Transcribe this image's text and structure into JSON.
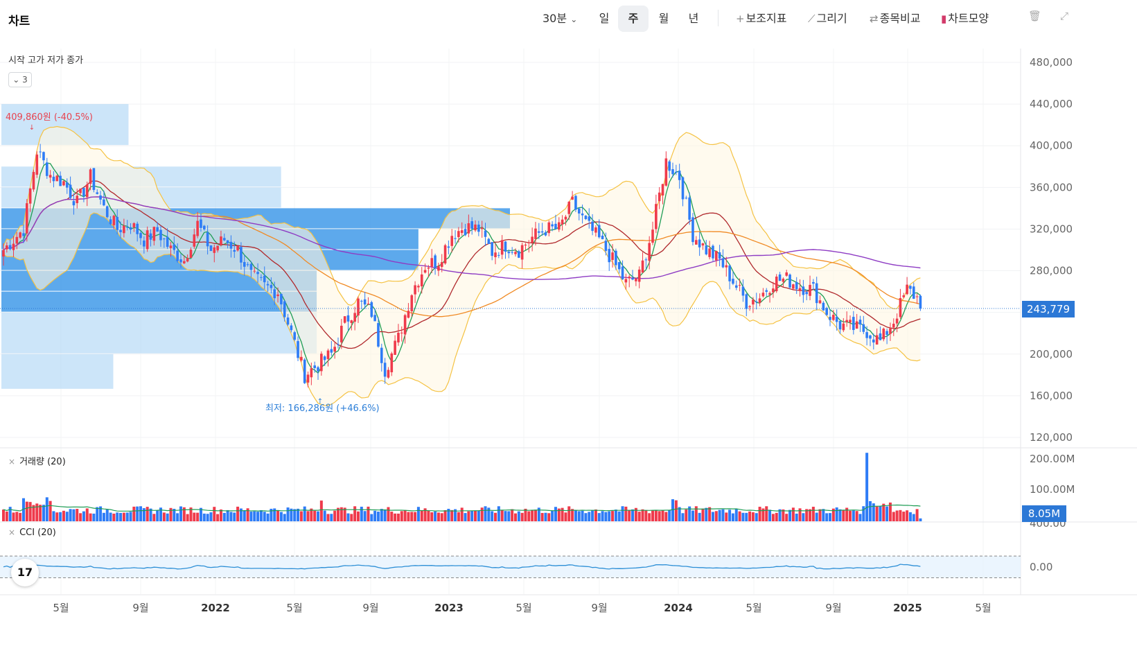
{
  "toolbar": {
    "title": "차트",
    "interval": "30분",
    "periods": [
      "일",
      "주",
      "월",
      "년"
    ],
    "active_period": "주",
    "tools": [
      {
        "icon": "plus-icon",
        "glyph": "+",
        "label": "보조지표"
      },
      {
        "icon": "pencil-icon",
        "glyph": "⟋",
        "label": "그리기"
      },
      {
        "icon": "compare-icon",
        "glyph": "⇄",
        "label": "종목비교"
      },
      {
        "icon": "chart-style-icon",
        "glyph": "▮",
        "label": "차트모양"
      }
    ],
    "trash_glyph": "🗑",
    "expand_glyph": "⤢"
  },
  "legend": {
    "ohlc": "시작 고가 저가 종가",
    "collapsed_count": "3"
  },
  "annotations": {
    "high": "409,860원 (-40.5%)",
    "low": "최저: 166,286원 (+46.6%)"
  },
  "current": {
    "price": "243,779",
    "volume": "8.05M"
  },
  "panes": {
    "volume_label": "거래량 (20)",
    "cci_label": "CCI (20)",
    "close_glyph": "×"
  },
  "colors": {
    "up": "#ef3a4b",
    "down": "#2e7cf6",
    "ma_short": "#1f9d55",
    "ma_mid": "#b0282c",
    "ma_long": "#f08a24",
    "ma_longest": "#8e3cc4",
    "bollinger": "#f5c242",
    "volume_profile": "#1e88e5",
    "cci": "#2d8fd6"
  },
  "chart_data": {
    "type": "candlestick",
    "y_ticks": [
      "480,000",
      "440,000",
      "400,000",
      "360,000",
      "320,000",
      "280,000",
      "240,000",
      "200,000",
      "160,000",
      "120,000"
    ],
    "y_range": [
      120000,
      480000
    ],
    "x_labels": [
      {
        "label": "5월",
        "year": false
      },
      {
        "label": "9월",
        "year": false
      },
      {
        "label": "2022",
        "year": true
      },
      {
        "label": "5월",
        "year": false
      },
      {
        "label": "9월",
        "year": false
      },
      {
        "label": "2023",
        "year": true
      },
      {
        "label": "5월",
        "year": false
      },
      {
        "label": "9월",
        "year": false
      },
      {
        "label": "2024",
        "year": true
      },
      {
        "label": "5월",
        "year": false
      },
      {
        "label": "9월",
        "year": false
      },
      {
        "label": "2025",
        "year": true
      },
      {
        "label": "5월",
        "year": false
      }
    ],
    "volume_ticks": [
      "200.00M",
      "100.00M"
    ],
    "cci_ticks": [
      "400.00",
      "0.00"
    ],
    "cci_range": [
      -250,
      400
    ],
    "close_anchors": [
      [
        0,
        300000
      ],
      [
        6,
        320000
      ],
      [
        10,
        395000
      ],
      [
        14,
        372000
      ],
      [
        18,
        365000
      ],
      [
        22,
        345000
      ],
      [
        26,
        370000
      ],
      [
        30,
        340000
      ],
      [
        34,
        320000
      ],
      [
        38,
        325000
      ],
      [
        42,
        310000
      ],
      [
        46,
        318000
      ],
      [
        50,
        300000
      ],
      [
        54,
        290000
      ],
      [
        58,
        325000
      ],
      [
        62,
        300000
      ],
      [
        66,
        310000
      ],
      [
        70,
        300000
      ],
      [
        74,
        275000
      ],
      [
        78,
        265000
      ],
      [
        82,
        260000
      ],
      [
        86,
        220000
      ],
      [
        90,
        180000
      ],
      [
        94,
        190000
      ],
      [
        98,
        200000
      ],
      [
        102,
        230000
      ],
      [
        106,
        250000
      ],
      [
        110,
        240000
      ],
      [
        114,
        185000
      ],
      [
        118,
        215000
      ],
      [
        122,
        260000
      ],
      [
        126,
        285000
      ],
      [
        130,
        290000
      ],
      [
        134,
        315000
      ],
      [
        138,
        322000
      ],
      [
        142,
        320000
      ],
      [
        146,
        298000
      ],
      [
        150,
        305000
      ],
      [
        154,
        300000
      ],
      [
        158,
        312000
      ],
      [
        162,
        320000
      ],
      [
        166,
        320000
      ],
      [
        170,
        345000
      ],
      [
        174,
        325000
      ],
      [
        178,
        310000
      ],
      [
        182,
        290000
      ],
      [
        186,
        268000
      ],
      [
        190,
        275000
      ],
      [
        194,
        320000
      ],
      [
        198,
        385000
      ],
      [
        202,
        370000
      ],
      [
        206,
        315000
      ],
      [
        210,
        300000
      ],
      [
        214,
        290000
      ],
      [
        218,
        270000
      ],
      [
        222,
        250000
      ],
      [
        226,
        255000
      ],
      [
        230,
        270000
      ],
      [
        234,
        272000
      ],
      [
        238,
        265000
      ],
      [
        242,
        262000
      ],
      [
        246,
        240000
      ],
      [
        250,
        228000
      ],
      [
        254,
        225000
      ],
      [
        258,
        222000
      ],
      [
        262,
        212000
      ],
      [
        266,
        232000
      ],
      [
        270,
        262000
      ],
      [
        273,
        254000
      ],
      [
        274,
        243779
      ]
    ],
    "volume_profile": [
      {
        "from": 440000,
        "to": 400000,
        "strength": 0.25,
        "dark": false
      },
      {
        "from": 380000,
        "to": 360000,
        "strength": 0.55,
        "dark": false
      },
      {
        "from": 360000,
        "to": 340000,
        "strength": 0.55,
        "dark": false
      },
      {
        "from": 340000,
        "to": 320000,
        "strength": 1.0,
        "dark": true
      },
      {
        "from": 320000,
        "to": 300000,
        "strength": 0.82,
        "dark": true
      },
      {
        "from": 300000,
        "to": 280000,
        "strength": 0.82,
        "dark": true
      },
      {
        "from": 280000,
        "to": 260000,
        "strength": 0.62,
        "dark": true
      },
      {
        "from": 260000,
        "to": 240000,
        "strength": 0.62,
        "dark": true
      },
      {
        "from": 240000,
        "to": 200000,
        "strength": 0.62,
        "dark": false
      },
      {
        "from": 200000,
        "to": 166000,
        "strength": 0.22,
        "dark": false
      }
    ]
  }
}
